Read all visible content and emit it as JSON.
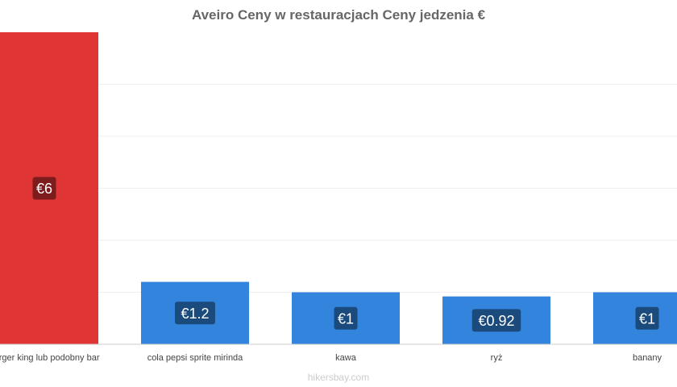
{
  "chart_data": {
    "type": "bar",
    "title": "Aveiro Ceny w restauracjach Ceny jedzenia €",
    "categories": [
      "burger king lub podobny bar",
      "cola pepsi sprite mirinda",
      "kawa",
      "ryż",
      "banany"
    ],
    "values": [
      6,
      1.2,
      1,
      0.92,
      1
    ],
    "data_labels": [
      "€6",
      "€1.2",
      "€1",
      "€0.92",
      "€1"
    ],
    "ylim": [
      0,
      6
    ],
    "grid": true,
    "colors": {
      "highlight_bar": "#e03535",
      "bar": "#3384dc",
      "highlight_label_bg": "#7d1c1c",
      "label_bg": "#1b4a7c",
      "grid": "#eeeeee",
      "axis": "#cccccc"
    }
  },
  "watermark": "hikersbay.com"
}
